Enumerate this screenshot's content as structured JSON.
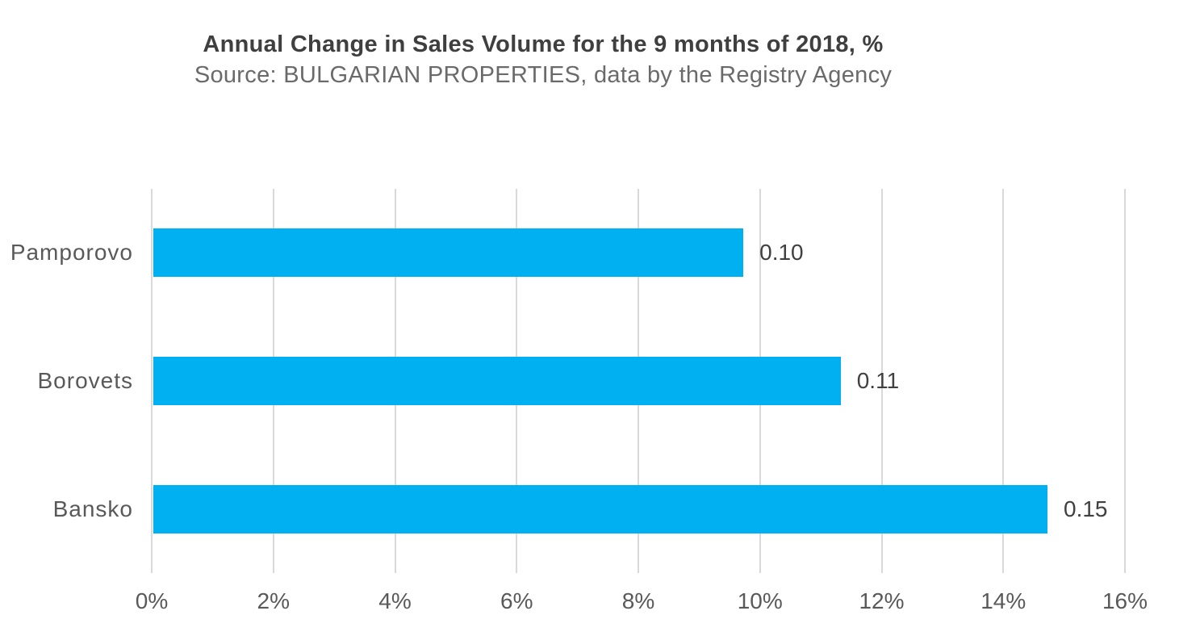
{
  "chart_data": {
    "type": "bar",
    "orientation": "horizontal",
    "title": "Annual Change in Sales Volume for the 9 months of 2018, %",
    "subtitle": "Source: BULGARIAN PROPERTIES, data by the Registry Agency",
    "categories": [
      "Pamporovo",
      "Borovets",
      "Bansko"
    ],
    "values_pct": [
      9.7,
      11.3,
      14.7
    ],
    "data_labels": [
      "0.10",
      "0.11",
      "0.15"
    ],
    "x_axis": {
      "min": 0,
      "max": 16,
      "step": 2,
      "tick_labels": [
        "0%",
        "2%",
        "4%",
        "6%",
        "8%",
        "10%",
        "12%",
        "14%",
        "16%"
      ]
    },
    "legend_position": "none",
    "grid": "vertical-gridlines",
    "colors": {
      "bar": "#00b0f0",
      "gridline": "#d9d9d9",
      "title_text": "#3f3f3f",
      "subtitle_text": "#6a6a6a",
      "category_text": "#595959",
      "tick_text": "#595959",
      "data_label_text": "#404040",
      "background": "#ffffff"
    }
  }
}
